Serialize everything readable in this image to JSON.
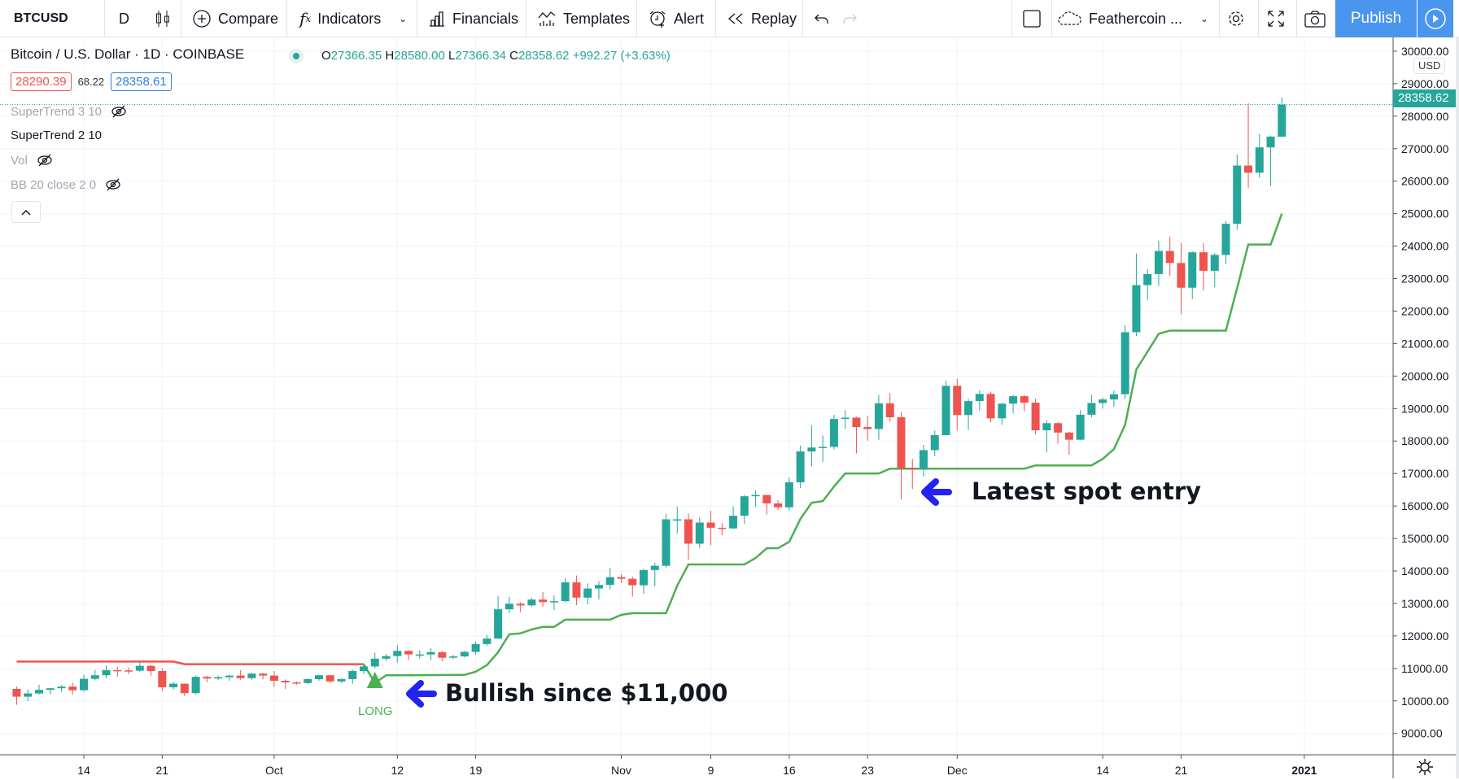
{
  "toolbar": {
    "symbol": "BTCUSD",
    "interval": "D",
    "compare": "Compare",
    "indicators": "Indicators",
    "financials": "Financials",
    "templates": "Templates",
    "alert": "Alert",
    "replay": "Replay",
    "layout_name": "Feathercoin ...",
    "publish": "Publish"
  },
  "legend": {
    "title": "Bitcoin / U.S. Dollar · 1D · COINBASE",
    "o_label": "O",
    "o": "27366.35",
    "h_label": "H",
    "h": "28580.00",
    "l_label": "L",
    "l": "27366.34",
    "c_label": "C",
    "c": "28358.62",
    "change": "+992.27 (+3.63%)",
    "bid": "28290.39",
    "spread": "68.22",
    "ask": "28358.61",
    "indicators": [
      {
        "label": "SuperTrend 3 10",
        "hidden": true
      },
      {
        "label": "SuperTrend 2 10",
        "hidden": false
      },
      {
        "label": "Vol",
        "hidden": true
      },
      {
        "label": "BB 20 close 2 0",
        "hidden": true
      }
    ]
  },
  "price_axis": {
    "currency": "USD",
    "last_price": "28358.62",
    "labels": [
      "30000.00",
      "29000.00",
      "28000.00",
      "27000.00",
      "26000.00",
      "25000.00",
      "24000.00",
      "23000.00",
      "22000.00",
      "21000.00",
      "20000.00",
      "19000.00",
      "18000.00",
      "17000.00",
      "16000.00",
      "15000.00",
      "14000.00",
      "13000.00",
      "12000.00",
      "11000.00",
      "10000.00",
      "9000.00"
    ]
  },
  "time_axis": {
    "labels": [
      {
        "t": "14",
        "d": "2020-09-14"
      },
      {
        "t": "21",
        "d": "2020-09-21"
      },
      {
        "t": "Oct",
        "d": "2020-10-01"
      },
      {
        "t": "12",
        "d": "2020-10-12"
      },
      {
        "t": "19",
        "d": "2020-10-19"
      },
      {
        "t": "Nov",
        "d": "2020-11-01"
      },
      {
        "t": "9",
        "d": "2020-11-09"
      },
      {
        "t": "16",
        "d": "2020-11-16"
      },
      {
        "t": "23",
        "d": "2020-11-23"
      },
      {
        "t": "Dec",
        "d": "2020-12-01"
      },
      {
        "t": "14",
        "d": "2020-12-14"
      },
      {
        "t": "21",
        "d": "2020-12-21"
      },
      {
        "t": "2021",
        "d": "2021-01-01"
      }
    ]
  },
  "annotations": {
    "signal": "LONG",
    "bullish": "Bullish since $11,000",
    "entry": "Latest spot entry"
  },
  "colors": {
    "up": "#26a69a",
    "down": "#ef5350",
    "supertrend_up": "#4caf50",
    "supertrend_down": "#ef5350",
    "arrow": "#2323f0",
    "publish": "#4a95ee"
  },
  "chart_data": {
    "type": "candlestick",
    "ylim": [
      8600,
      30300
    ],
    "candles": [
      [
        "2020-09-08",
        10370,
        10440,
        9880,
        10130
      ],
      [
        "2020-09-09",
        10130,
        10350,
        10000,
        10230
      ],
      [
        "2020-09-10",
        10230,
        10500,
        10200,
        10340
      ],
      [
        "2020-09-11",
        10340,
        10400,
        10200,
        10390
      ],
      [
        "2020-09-12",
        10390,
        10480,
        10280,
        10440
      ],
      [
        "2020-09-13",
        10440,
        10560,
        10200,
        10330
      ],
      [
        "2020-09-14",
        10330,
        10800,
        10280,
        10680
      ],
      [
        "2020-09-15",
        10680,
        10950,
        10630,
        10790
      ],
      [
        "2020-09-16",
        10790,
        11100,
        10700,
        10950
      ],
      [
        "2020-09-17",
        10950,
        11050,
        10750,
        10940
      ],
      [
        "2020-09-18",
        10940,
        11030,
        10820,
        10930
      ],
      [
        "2020-09-19",
        10930,
        11180,
        10890,
        11080
      ],
      [
        "2020-09-20",
        11080,
        11100,
        10770,
        10920
      ],
      [
        "2020-09-21",
        10920,
        11000,
        10300,
        10420
      ],
      [
        "2020-09-22",
        10420,
        10580,
        10350,
        10530
      ],
      [
        "2020-09-23",
        10530,
        10530,
        10150,
        10240
      ],
      [
        "2020-09-24",
        10240,
        10780,
        10200,
        10740
      ],
      [
        "2020-09-25",
        10740,
        10770,
        10580,
        10690
      ],
      [
        "2020-09-26",
        10690,
        10780,
        10640,
        10730
      ],
      [
        "2020-09-27",
        10730,
        10800,
        10620,
        10780
      ],
      [
        "2020-09-28",
        10780,
        10950,
        10650,
        10700
      ],
      [
        "2020-09-29",
        10700,
        10860,
        10650,
        10840
      ],
      [
        "2020-09-30",
        10840,
        10860,
        10660,
        10780
      ],
      [
        "2020-10-01",
        10780,
        10920,
        10430,
        10620
      ],
      [
        "2020-10-02",
        10620,
        10660,
        10370,
        10570
      ],
      [
        "2020-10-03",
        10570,
        10600,
        10500,
        10550
      ],
      [
        "2020-10-04",
        10550,
        10700,
        10520,
        10670
      ],
      [
        "2020-10-05",
        10670,
        10800,
        10620,
        10790
      ],
      [
        "2020-10-06",
        10790,
        10800,
        10540,
        10600
      ],
      [
        "2020-10-07",
        10600,
        10690,
        10560,
        10670
      ],
      [
        "2020-10-08",
        10670,
        10960,
        10530,
        10920
      ],
      [
        "2020-10-09",
        10920,
        11110,
        10830,
        11060
      ],
      [
        "2020-10-10",
        11060,
        11480,
        11000,
        11300
      ],
      [
        "2020-10-11",
        11300,
        11440,
        11230,
        11380
      ],
      [
        "2020-10-12",
        11380,
        11720,
        11180,
        11540
      ],
      [
        "2020-10-13",
        11540,
        11560,
        11250,
        11430
      ],
      [
        "2020-10-14",
        11430,
        11560,
        11300,
        11430
      ],
      [
        "2020-10-15",
        11430,
        11620,
        11250,
        11500
      ],
      [
        "2020-10-16",
        11500,
        11540,
        11220,
        11330
      ],
      [
        "2020-10-17",
        11330,
        11420,
        11290,
        11370
      ],
      [
        "2020-10-18",
        11370,
        11540,
        11340,
        11510
      ],
      [
        "2020-10-19",
        11510,
        11830,
        11420,
        11750
      ],
      [
        "2020-10-20",
        11750,
        12030,
        11690,
        11920
      ],
      [
        "2020-10-21",
        11920,
        13220,
        11900,
        12820
      ],
      [
        "2020-10-22",
        12820,
        13200,
        12700,
        12990
      ],
      [
        "2020-10-23",
        12990,
        13040,
        12730,
        12940
      ],
      [
        "2020-10-24",
        12940,
        13170,
        12900,
        13120
      ],
      [
        "2020-10-25",
        13120,
        13350,
        12900,
        13040
      ],
      [
        "2020-10-26",
        13040,
        13250,
        12800,
        13070
      ],
      [
        "2020-10-27",
        13070,
        13780,
        13040,
        13650
      ],
      [
        "2020-10-28",
        13650,
        13860,
        12950,
        13180
      ],
      [
        "2020-10-29",
        13180,
        13620,
        12970,
        13460
      ],
      [
        "2020-10-30",
        13460,
        13680,
        13120,
        13570
      ],
      [
        "2020-10-31",
        13570,
        14100,
        13430,
        13810
      ],
      [
        "2020-11-01",
        13810,
        13900,
        13630,
        13760
      ],
      [
        "2020-11-02",
        13760,
        13830,
        13210,
        13560
      ],
      [
        "2020-11-03",
        13560,
        14070,
        13290,
        14030
      ],
      [
        "2020-11-04",
        14030,
        14250,
        13530,
        14160
      ],
      [
        "2020-11-05",
        14160,
        15760,
        14100,
        15590
      ],
      [
        "2020-11-06",
        15590,
        15980,
        15150,
        15590
      ],
      [
        "2020-11-07",
        15590,
        15770,
        14350,
        14840
      ],
      [
        "2020-11-08",
        14840,
        15650,
        14710,
        15490
      ],
      [
        "2020-11-09",
        15490,
        15850,
        14800,
        15330
      ],
      [
        "2020-11-10",
        15330,
        15470,
        15100,
        15310
      ],
      [
        "2020-11-11",
        15310,
        15990,
        15290,
        15700
      ],
      [
        "2020-11-12",
        15700,
        16340,
        15450,
        16300
      ],
      [
        "2020-11-13",
        16300,
        16480,
        15970,
        16340
      ],
      [
        "2020-11-14",
        16340,
        16340,
        15740,
        16080
      ],
      [
        "2020-11-15",
        16080,
        16180,
        15870,
        15960
      ],
      [
        "2020-11-16",
        15960,
        16880,
        15870,
        16730
      ],
      [
        "2020-11-17",
        16730,
        17860,
        16550,
        17680
      ],
      [
        "2020-11-18",
        17680,
        18490,
        17220,
        17800
      ],
      [
        "2020-11-19",
        17800,
        18170,
        17360,
        17820
      ],
      [
        "2020-11-20",
        17820,
        18810,
        17740,
        18680
      ],
      [
        "2020-11-21",
        18680,
        18950,
        18380,
        18720
      ],
      [
        "2020-11-22",
        18720,
        18750,
        17620,
        18430
      ],
      [
        "2020-11-23",
        18430,
        18770,
        18010,
        18370
      ],
      [
        "2020-11-24",
        18370,
        19420,
        18040,
        19160
      ],
      [
        "2020-11-25",
        19160,
        19480,
        18600,
        18730
      ],
      [
        "2020-11-26",
        18730,
        18900,
        16200,
        17160
      ],
      [
        "2020-11-27",
        17160,
        17450,
        16520,
        17140
      ],
      [
        "2020-11-28",
        17140,
        17880,
        16900,
        17720
      ],
      [
        "2020-11-29",
        17720,
        18320,
        17530,
        18180
      ],
      [
        "2020-11-30",
        18180,
        19850,
        18180,
        19700
      ],
      [
        "2020-12-01",
        19700,
        19920,
        18330,
        18800
      ],
      [
        "2020-12-02",
        18800,
        19300,
        18340,
        19230
      ],
      [
        "2020-12-03",
        19230,
        19560,
        18930,
        19450
      ],
      [
        "2020-12-04",
        19450,
        19520,
        18570,
        18700
      ],
      [
        "2020-12-05",
        18700,
        19170,
        18500,
        19150
      ],
      [
        "2020-12-06",
        19150,
        19420,
        18850,
        19380
      ],
      [
        "2020-12-07",
        19380,
        19420,
        18920,
        19180
      ],
      [
        "2020-12-08",
        19180,
        19300,
        18200,
        18330
      ],
      [
        "2020-12-09",
        18330,
        18640,
        17650,
        18550
      ],
      [
        "2020-12-10",
        18550,
        18580,
        17920,
        18260
      ],
      [
        "2020-12-11",
        18260,
        18280,
        17580,
        18040
      ],
      [
        "2020-12-12",
        18040,
        18950,
        18020,
        18810
      ],
      [
        "2020-12-13",
        18810,
        19420,
        18730,
        19170
      ],
      [
        "2020-12-14",
        19170,
        19340,
        19000,
        19280
      ],
      [
        "2020-12-15",
        19280,
        19560,
        19050,
        19440
      ],
      [
        "2020-12-16",
        19440,
        21560,
        19300,
        21350
      ],
      [
        "2020-12-17",
        21350,
        23770,
        21230,
        22800
      ],
      [
        "2020-12-18",
        22800,
        23290,
        22350,
        23140
      ],
      [
        "2020-12-19",
        23140,
        24170,
        22780,
        23850
      ],
      [
        "2020-12-20",
        23850,
        24300,
        23080,
        23480
      ],
      [
        "2020-12-21",
        23480,
        24100,
        21900,
        22720
      ],
      [
        "2020-12-22",
        22720,
        23840,
        22370,
        23810
      ],
      [
        "2020-12-23",
        23810,
        24100,
        22630,
        23240
      ],
      [
        "2020-12-24",
        23240,
        23780,
        22730,
        23730
      ],
      [
        "2020-12-25",
        23730,
        24770,
        23450,
        24690
      ],
      [
        "2020-12-26",
        24690,
        26820,
        24500,
        26480
      ],
      [
        "2020-12-27",
        26480,
        28400,
        25800,
        26260
      ],
      [
        "2020-12-28",
        26260,
        27450,
        26100,
        27040
      ],
      [
        "2020-12-29",
        27040,
        27400,
        25850,
        27370
      ],
      [
        "2020-12-30",
        27366.35,
        28580,
        27366.34,
        28358.62
      ]
    ],
    "supertrend_down": [
      [
        "2020-09-08",
        11210
      ],
      [
        "2020-09-22",
        11210
      ],
      [
        "2020-09-23",
        11130
      ],
      [
        "2020-10-09",
        11130
      ]
    ],
    "supertrend_up": [
      [
        "2020-10-09",
        11130
      ],
      [
        "2020-10-10",
        10550
      ],
      [
        "2020-10-11",
        10790
      ],
      [
        "2020-10-18",
        10800
      ],
      [
        "2020-10-19",
        10900
      ],
      [
        "2020-10-20",
        11100
      ],
      [
        "2020-10-21",
        11500
      ],
      [
        "2020-10-22",
        12050
      ],
      [
        "2020-10-23",
        12080
      ],
      [
        "2020-10-24",
        12200
      ],
      [
        "2020-10-25",
        12280
      ],
      [
        "2020-10-26",
        12280
      ],
      [
        "2020-10-27",
        12500
      ],
      [
        "2020-10-31",
        12500
      ],
      [
        "2020-11-01",
        12650
      ],
      [
        "2020-11-02",
        12700
      ],
      [
        "2020-11-05",
        12700
      ],
      [
        "2020-11-06",
        13550
      ],
      [
        "2020-11-07",
        14200
      ],
      [
        "2020-11-12",
        14200
      ],
      [
        "2020-11-13",
        14400
      ],
      [
        "2020-11-14",
        14700
      ],
      [
        "2020-11-15",
        14700
      ],
      [
        "2020-11-16",
        14900
      ],
      [
        "2020-11-17",
        15600
      ],
      [
        "2020-11-18",
        16100
      ],
      [
        "2020-11-19",
        16150
      ],
      [
        "2020-11-20",
        16600
      ],
      [
        "2020-11-21",
        17000
      ],
      [
        "2020-11-24",
        17000
      ],
      [
        "2020-11-25",
        17150
      ],
      [
        "2020-12-07",
        17150
      ],
      [
        "2020-12-08",
        17250
      ],
      [
        "2020-12-13",
        17250
      ],
      [
        "2020-12-14",
        17450
      ],
      [
        "2020-12-15",
        17750
      ],
      [
        "2020-12-16",
        18500
      ],
      [
        "2020-12-17",
        20200
      ],
      [
        "2020-12-18",
        20750
      ],
      [
        "2020-12-19",
        21300
      ],
      [
        "2020-12-20",
        21400
      ],
      [
        "2020-12-25",
        21400
      ],
      [
        "2020-12-26",
        22700
      ],
      [
        "2020-12-27",
        24050
      ],
      [
        "2020-12-29",
        24050
      ],
      [
        "2020-12-30",
        25000
      ]
    ]
  }
}
